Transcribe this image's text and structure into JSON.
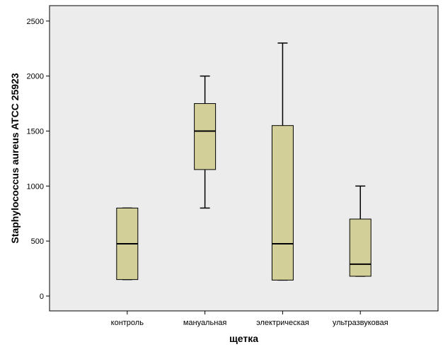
{
  "chart_data": {
    "type": "boxplot",
    "title": "",
    "xlabel": "щетка",
    "ylabel": "Staphylococcus aureus ATCC 25923",
    "ylim": [
      -135,
      2640
    ],
    "yticks": [
      0,
      500,
      1000,
      1500,
      2000,
      2500
    ],
    "grid": false,
    "colors": {
      "plot_bg": "#ececec",
      "box_fill": "#d3cf98",
      "line": "#000000"
    },
    "categories": [
      "контроль",
      "мануальная",
      "электрическая",
      "ультразвуковая"
    ],
    "boxes": [
      {
        "category": "контроль",
        "whisker_low": 150,
        "q1": 150,
        "median": 475,
        "q3": 800,
        "whisker_high": 800
      },
      {
        "category": "мануальная",
        "whisker_low": 800,
        "q1": 1150,
        "median": 1500,
        "q3": 1750,
        "whisker_high": 2000
      },
      {
        "category": "электрическая",
        "whisker_low": 145,
        "q1": 145,
        "median": 475,
        "q3": 1550,
        "whisker_high": 2300
      },
      {
        "category": "ультразвуковая",
        "whisker_low": 180,
        "q1": 180,
        "median": 290,
        "q3": 700,
        "whisker_high": 1000
      }
    ]
  }
}
